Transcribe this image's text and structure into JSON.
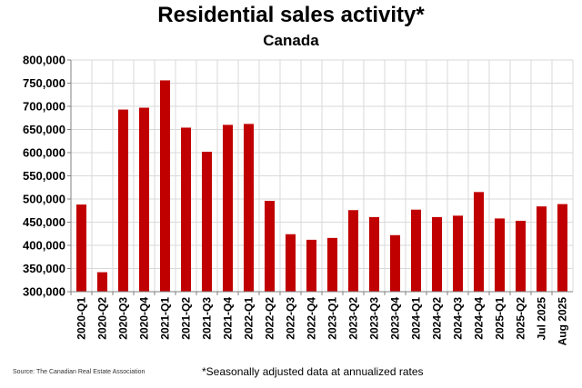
{
  "chart_data": {
    "type": "bar",
    "title": "Residential sales activity*",
    "subtitle": "Canada",
    "categories": [
      "2020-Q1",
      "2020-Q2",
      "2020-Q3",
      "2020-Q4",
      "2021-Q1",
      "2021-Q2",
      "2021-Q3",
      "2021-Q4",
      "2022-Q1",
      "2022-Q2",
      "2022-Q3",
      "2022-Q4",
      "2023-Q1",
      "2023-Q2",
      "2023-Q3",
      "2023-Q4",
      "2024-Q1",
      "2024-Q2",
      "2024-Q3",
      "2024-Q4",
      "2025-Q1",
      "2025-Q2",
      "Jul 2025",
      "Aug 2025"
    ],
    "values": [
      488000,
      342000,
      693000,
      697000,
      756000,
      654000,
      602000,
      660000,
      662000,
      496000,
      424000,
      412000,
      416000,
      476000,
      461000,
      422000,
      477000,
      461000,
      464000,
      515000,
      458000,
      453000,
      484000,
      489000
    ],
    "ylim": [
      300000,
      800000
    ],
    "yticks": [
      300000,
      350000,
      400000,
      450000,
      500000,
      550000,
      600000,
      650000,
      700000,
      750000,
      800000
    ],
    "ytick_labels": [
      "300,000",
      "350,000",
      "400,000",
      "450,000",
      "500,000",
      "550,000",
      "600,000",
      "650,000",
      "700,000",
      "750,000",
      "800,000"
    ],
    "grid": true,
    "bar_color": "#c00000",
    "grid_color": "#d9d9d9",
    "footnote": "*Seasonally adjusted data at annualized rates",
    "source": "Source: The Canadian Real Estate Association"
  }
}
